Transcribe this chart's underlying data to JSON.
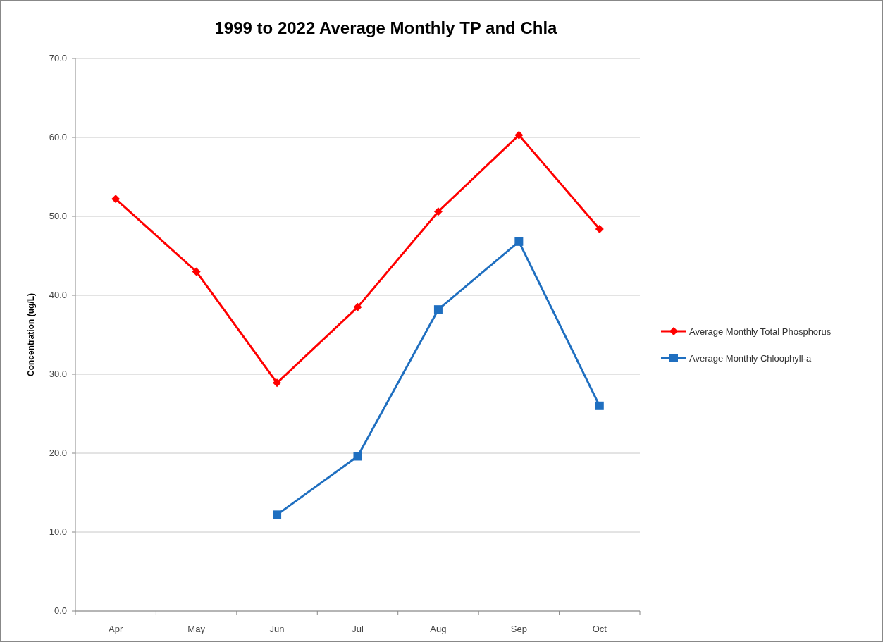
{
  "chart_data": {
    "type": "line",
    "title": "1999 to 2022 Average Monthly TP and Chla",
    "ylabel": "Concentration (ug/L)",
    "categories": [
      "Apr",
      "May",
      "Jun",
      "Jul",
      "Aug",
      "Sep",
      "Oct"
    ],
    "series": [
      {
        "name": "Average Monthly Total Phosphorus",
        "color": "#ff0000",
        "marker": "diamond",
        "values": [
          52.2,
          43.0,
          28.9,
          38.5,
          50.6,
          60.3,
          48.4
        ]
      },
      {
        "name": "Average Monthly Chloophyll-a",
        "color": "#1f6fc0",
        "marker": "square",
        "values": [
          null,
          null,
          12.2,
          19.6,
          38.2,
          46.8,
          26.0
        ]
      }
    ],
    "ylim": [
      0,
      70
    ],
    "yticks": [
      {
        "value": 0,
        "label": "0.0"
      },
      {
        "value": 10,
        "label": "10.0"
      },
      {
        "value": 20,
        "label": "20.0"
      },
      {
        "value": 30,
        "label": "30.0"
      },
      {
        "value": 40,
        "label": "40.0"
      },
      {
        "value": 50,
        "label": "50.0"
      },
      {
        "value": 60,
        "label": "60.0"
      },
      {
        "value": 70,
        "label": "70.0"
      }
    ],
    "grid": "y",
    "legend": "right",
    "line_style": "solid"
  }
}
